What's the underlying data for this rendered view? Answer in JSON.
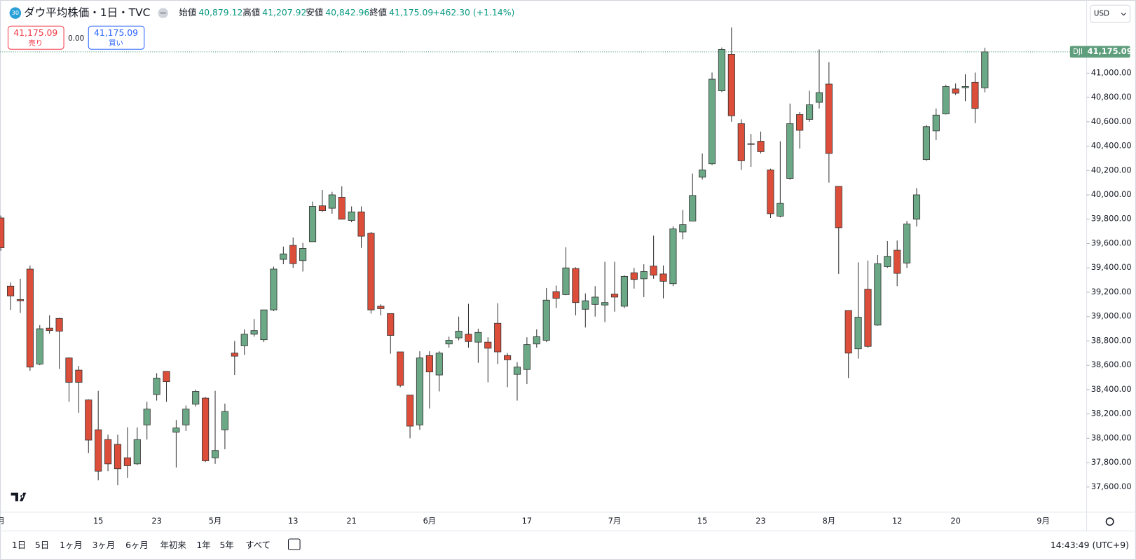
{
  "header": {
    "icon": "30",
    "title": "ダウ平均株価・1日・TVC",
    "open_label": "始値",
    "open": "40,879.12",
    "high_label": "高値",
    "high": "41,207.92",
    "low_label": "安値",
    "low": "40,842.96",
    "close_label": "終値",
    "close": "41,175.09",
    "change": "+462.30 (+1.14%)"
  },
  "trade": {
    "sell_price": "41,175.09",
    "sell_label": "売り",
    "spread": "0.00",
    "buy_price": "41,175.09",
    "buy_label": "買い"
  },
  "currency": "USD",
  "toolbar": {
    "ranges": [
      "1日",
      "5日",
      "1ヶ月",
      "3ヶ月",
      "6ヶ月",
      "年初来",
      "1年",
      "5年",
      "すべて"
    ],
    "time": "14:43:49 (UTC+9)"
  },
  "chart_data": {
    "type": "candlestick",
    "up_color": "#6aa886",
    "down_color": "#dc4e3a",
    "grid": false,
    "last_price": {
      "symbol": "DJI",
      "value": 41175.09,
      "label": "41,175.09"
    },
    "ylim": [
      37393,
      41571
    ],
    "yticks": [
      {
        "value": 37600,
        "label": "37,600.00"
      },
      {
        "value": 37800,
        "label": "37,800.00"
      },
      {
        "value": 38000,
        "label": "38,000.00"
      },
      {
        "value": 38200,
        "label": "38,200.00"
      },
      {
        "value": 38400,
        "label": "38,400.00"
      },
      {
        "value": 38600,
        "label": "38,600.00"
      },
      {
        "value": 38800,
        "label": "38,800.00"
      },
      {
        "value": 39000,
        "label": "39,000.00"
      },
      {
        "value": 39200,
        "label": "39,200.00"
      },
      {
        "value": 39400,
        "label": "39,400.00"
      },
      {
        "value": 39600,
        "label": "39,600.00"
      },
      {
        "value": 39800,
        "label": "39,800.00"
      },
      {
        "value": 40000,
        "label": "40,000.00"
      },
      {
        "value": 40200,
        "label": "40,200.00"
      },
      {
        "value": 40400,
        "label": "40,400.00"
      },
      {
        "value": 40600,
        "label": "40,600.00"
      },
      {
        "value": 40800,
        "label": "40,800.00"
      },
      {
        "value": 41000,
        "label": "41,000.00"
      }
    ],
    "categories": [
      "月",
      null,
      null,
      null,
      null,
      null,
      null,
      null,
      null,
      null,
      "15",
      null,
      null,
      null,
      null,
      null,
      "23",
      null,
      null,
      null,
      null,
      null,
      "5月",
      null,
      null,
      null,
      null,
      null,
      null,
      null,
      "13",
      null,
      null,
      null,
      null,
      null,
      "21",
      null,
      null,
      null,
      null,
      null,
      null,
      null,
      "6月",
      null,
      null,
      null,
      null,
      null,
      null,
      null,
      null,
      null,
      "17",
      null,
      null,
      null,
      null,
      null,
      null,
      null,
      null,
      "7月",
      null,
      null,
      null,
      null,
      null,
      null,
      null,
      null,
      "15",
      null,
      null,
      null,
      null,
      null,
      "23",
      null,
      null,
      null,
      null,
      null,
      null,
      "8月",
      null,
      null,
      null,
      null,
      null,
      null,
      "12",
      null,
      null,
      null,
      null,
      null,
      "20",
      null,
      null,
      null,
      null,
      null,
      null,
      null,
      null,
      "9月"
    ],
    "open": [
      39810,
      39250,
      39140,
      39390,
      38610,
      38905,
      38985,
      38660,
      38560,
      38315,
      38070,
      37990,
      37950,
      37840,
      37790,
      38110,
      38360,
      38550,
      38050,
      38110,
      38280,
      38330,
      37840,
      38070,
      38700,
      38760,
      38855,
      38810,
      39055,
      39470,
      39585,
      39460,
      39615,
      39910,
      39890,
      39980,
      39790,
      39860,
      39685,
      39085,
      39025,
      38710,
      38355,
      38110,
      38680,
      38520,
      38775,
      38825,
      38855,
      38790,
      38790,
      38945,
      38680,
      38525,
      38565,
      38775,
      38805,
      39205,
      39180,
      39395,
      39060,
      39100,
      39095,
      39185,
      39085,
      39360,
      39310,
      39415,
      39350,
      39270,
      39695,
      39785,
      40145,
      40255,
      40855,
      41155,
      40585,
      40420,
      40440,
      40205,
      39825,
      40135,
      40660,
      40620,
      40760,
      40910,
      40070,
      39050,
      38735,
      39225,
      38930,
      39410,
      39545,
      39440,
      39800,
      40290,
      40525,
      40665,
      40870,
      40880,
      40925,
      40879.12,
      null,
      null,
      null,
      null,
      null,
      null
    ],
    "high": [
      39830,
      39280,
      39310,
      39420,
      38930,
      39010,
      38990,
      38665,
      38595,
      38320,
      38390,
      38030,
      38030,
      38090,
      38090,
      38300,
      38535,
      38550,
      38150,
      38270,
      38400,
      38340,
      38390,
      38285,
      38800,
      38895,
      38980,
      39055,
      39410,
      39575,
      39650,
      39605,
      39945,
      40040,
      40025,
      40070,
      39905,
      39905,
      39695,
      39100,
      39025,
      38710,
      38355,
      38715,
      38715,
      38715,
      38835,
      39000,
      39105,
      38900,
      38830,
      39110,
      38700,
      38625,
      38830,
      38895,
      39235,
      39255,
      39570,
      39405,
      39190,
      39250,
      39450,
      39450,
      39340,
      39400,
      39430,
      39665,
      39420,
      39740,
      39875,
      40175,
      40340,
      41005,
      41210,
      41375,
      40620,
      40500,
      40520,
      40215,
      40440,
      40750,
      40680,
      40855,
      41195,
      41090,
      40070,
      39050,
      39445,
      39460,
      39505,
      39620,
      39625,
      39785,
      40055,
      40575,
      40710,
      40905,
      40915,
      40990,
      41005,
      41207.92,
      null,
      null,
      null,
      null,
      null,
      null
    ],
    "low": [
      39540,
      39055,
      39030,
      38555,
      38600,
      38860,
      38570,
      38300,
      38210,
      37880,
      37655,
      37730,
      37615,
      37675,
      37780,
      37990,
      38310,
      38300,
      37760,
      38060,
      38260,
      37805,
      37790,
      37910,
      38520,
      38685,
      38835,
      38790,
      39045,
      39430,
      39400,
      39370,
      39615,
      39860,
      39845,
      39800,
      39775,
      39565,
      39025,
      39010,
      38695,
      38420,
      38000,
      38070,
      38245,
      38385,
      38745,
      38805,
      38745,
      38620,
      38460,
      38610,
      38420,
      38310,
      38445,
      38745,
      38790,
      39070,
      39175,
      39010,
      38910,
      39000,
      38955,
      39040,
      39070,
      39230,
      39160,
      39310,
      39150,
      39250,
      39635,
      39785,
      40125,
      40245,
      40845,
      40600,
      40205,
      40230,
      40340,
      39810,
      39815,
      40125,
      40380,
      40600,
      40710,
      40100,
      39350,
      38495,
      38655,
      38745,
      38925,
      39400,
      39250,
      39400,
      39740,
      40280,
      40450,
      40660,
      40820,
      40770,
      40590,
      40842.96,
      null,
      null,
      null,
      null,
      null,
      null
    ],
    "close": [
      39565,
      39170,
      39130,
      38585,
      38900,
      38885,
      38880,
      38460,
      38460,
      37985,
      37730,
      37790,
      37750,
      37775,
      37990,
      38240,
      38495,
      38465,
      38085,
      38240,
      38385,
      37815,
      37900,
      38220,
      38675,
      38855,
      38885,
      39055,
      39390,
      39515,
      39435,
      39560,
      39905,
      39870,
      40000,
      39800,
      39860,
      39660,
      39055,
      39065,
      38845,
      38435,
      38100,
      38660,
      38545,
      38700,
      38805,
      38880,
      38795,
      38870,
      38740,
      38710,
      38645,
      38585,
      38770,
      38835,
      39135,
      39150,
      39400,
      39115,
      39130,
      39160,
      39115,
      39160,
      39330,
      39305,
      39370,
      39340,
      39290,
      39720,
      39755,
      39995,
      40205,
      40950,
      41195,
      40650,
      40280,
      40415,
      40355,
      39845,
      39930,
      40585,
      40530,
      40740,
      40840,
      40340,
      39730,
      38700,
      38995,
      38755,
      39435,
      39495,
      39355,
      39760,
      40000,
      40560,
      40655,
      40890,
      40835,
      40890,
      40710,
      41175.09,
      null,
      null,
      null,
      null,
      null,
      null
    ]
  }
}
